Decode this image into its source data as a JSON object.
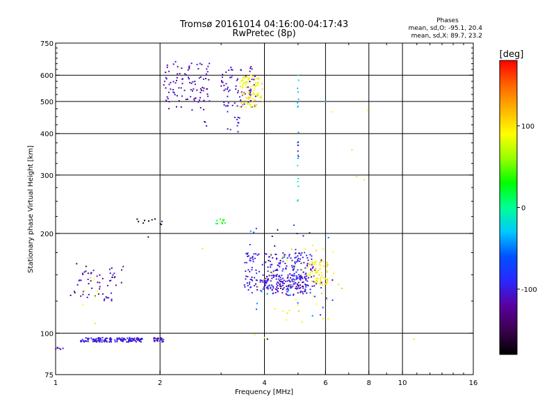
{
  "chart_data": {
    "type": "scatter",
    "title": "Tromsø 20161014 04:16:00-04:17:43",
    "subtitle": "RwPretec (8p)",
    "xlabel": "Frequency [MHz]",
    "ylabel": "Stationary phase Virtual Height [km]",
    "x_scale": "log2",
    "y_scale": "log",
    "xlim": [
      1,
      16
    ],
    "ylim": [
      75,
      750
    ],
    "x_ticks": [
      1,
      2,
      4,
      6,
      8,
      10,
      16
    ],
    "y_ticks": [
      75,
      100,
      200,
      300,
      400,
      500,
      600,
      750
    ],
    "x_grid": [
      2,
      4,
      6,
      8,
      10
    ],
    "y_grid": [
      100,
      200,
      300,
      400,
      500,
      600
    ],
    "stats": {
      "heading": "Phases",
      "line_o": "mean, sd,O: -95.1, 20.4",
      "line_x": "mean, sd,X:  89.7, 23.2"
    },
    "colorbar": {
      "label": "[deg]",
      "range": [
        -180,
        180
      ],
      "ticks": [
        -100,
        0,
        100
      ],
      "colors": [
        "#000000",
        "#3c0050",
        "#5a00a0",
        "#2828ff",
        "#0050ff",
        "#00c8ff",
        "#00ff96",
        "#00ff00",
        "#96ff00",
        "#ffff00",
        "#ffb400",
        "#ff6400",
        "#ff0000"
      ]
    },
    "clusters": [
      {
        "name": "E-layer trace",
        "x": [
          1.18,
          1.78
        ],
        "y": [
          94,
          97
        ],
        "phase": -100,
        "n": 150
      },
      {
        "name": "E-layer end",
        "x": [
          1.92,
          2.05
        ],
        "y": [
          94,
          97
        ],
        "phase": -105,
        "n": 22
      },
      {
        "name": "low E start",
        "x": [
          1.0,
          1.04
        ],
        "y": [
          89,
          91
        ],
        "phase": -110,
        "n": 5
      },
      {
        "name": "F1 low-freq O",
        "x": [
          1.13,
          1.48
        ],
        "y": [
          125,
          155
        ],
        "phase": -115,
        "n": 40
      },
      {
        "name": "F1 low-freq mix",
        "x": [
          1.1,
          1.62
        ],
        "y": [
          130,
          165
        ],
        "phase": -130,
        "n": 20
      },
      {
        "name": "F1 low-freq X",
        "x": [
          1.15,
          1.45
        ],
        "y": [
          110,
          165
        ],
        "phase": 90,
        "n": 6
      },
      {
        "name": "spread 215km",
        "x": [
          1.7,
          2.05
        ],
        "y": [
          212,
          222
        ],
        "phase": -150,
        "n": 10
      },
      {
        "name": "green cluster",
        "x": [
          2.9,
          3.15
        ],
        "y": [
          214,
          222
        ],
        "phase": 30,
        "n": 10
      },
      {
        "name": "F2 low-freq O",
        "x": [
          2.05,
          2.8
        ],
        "y": [
          470,
          660
        ],
        "phase": -115,
        "n": 100
      },
      {
        "name": "F2 mid O",
        "x": [
          3.0,
          3.8
        ],
        "y": [
          480,
          640
        ],
        "phase": -110,
        "n": 70
      },
      {
        "name": "F2 X",
        "x": [
          3.4,
          3.95
        ],
        "y": [
          480,
          600
        ],
        "phase": 95,
        "n": 90
      },
      {
        "name": "F2 scattered",
        "x": [
          2.6,
          3.4
        ],
        "y": [
          410,
          500
        ],
        "phase": -105,
        "n": 10
      },
      {
        "name": "oblique 430",
        "x": [
          3.33,
          3.37
        ],
        "y": [
          400,
          450
        ],
        "phase": -105,
        "n": 6
      },
      {
        "name": "vertical cyan",
        "x": [
          4.98,
          5.02
        ],
        "y": [
          250,
          620
        ],
        "phase": -20,
        "n": 18
      },
      {
        "name": "vertical cyan blue",
        "x": [
          4.98,
          5.02
        ],
        "y": [
          340,
          380
        ],
        "phase": -100,
        "n": 5
      },
      {
        "name": "F1 main O",
        "x": [
          3.5,
          5.6
        ],
        "y": [
          135,
          175
        ],
        "phase": -100,
        "n": 220
      },
      {
        "name": "F1 main O lower",
        "x": [
          3.9,
          5.3
        ],
        "y": [
          130,
          150
        ],
        "phase": -105,
        "n": 120
      },
      {
        "name": "F1 X",
        "x": [
          5.3,
          6.1
        ],
        "y": [
          140,
          165
        ],
        "phase": 100,
        "n": 60
      },
      {
        "name": "F1 scattered X",
        "x": [
          3.8,
          6.8
        ],
        "y": [
          105,
          185
        ],
        "phase": 95,
        "n": 40
      },
      {
        "name": "F1 scattered misc",
        "x": [
          3.6,
          6.3
        ],
        "y": [
          110,
          215
        ],
        "phase": -60,
        "n": 30
      },
      {
        "name": "F1 red/purple",
        "x": [
          3.7,
          6.6
        ],
        "y": [
          130,
          210
        ],
        "phase": -150,
        "n": 16
      },
      {
        "name": "high-freq strays",
        "x": [
          6.0,
          8.0
        ],
        "y": [
          230,
          480
        ],
        "phase": 90,
        "n": 4
      }
    ],
    "isolated_points": [
      {
        "x": 1.05,
        "y": 90,
        "phase": -95
      },
      {
        "x": 1.85,
        "y": 195,
        "phase": -140
      },
      {
        "x": 2.65,
        "y": 180,
        "phase": 100
      },
      {
        "x": 7.95,
        "y": 470,
        "phase": 100
      },
      {
        "x": 10.8,
        "y": 96,
        "phase": 100
      },
      {
        "x": 4.0,
        "y": 97,
        "phase": 90
      },
      {
        "x": 4.08,
        "y": 96,
        "phase": -150
      },
      {
        "x": 1.3,
        "y": 107,
        "phase": 100
      },
      {
        "x": 3.75,
        "y": 99,
        "phase": 85
      },
      {
        "x": 5.98,
        "y": 500,
        "phase": -20
      }
    ]
  }
}
